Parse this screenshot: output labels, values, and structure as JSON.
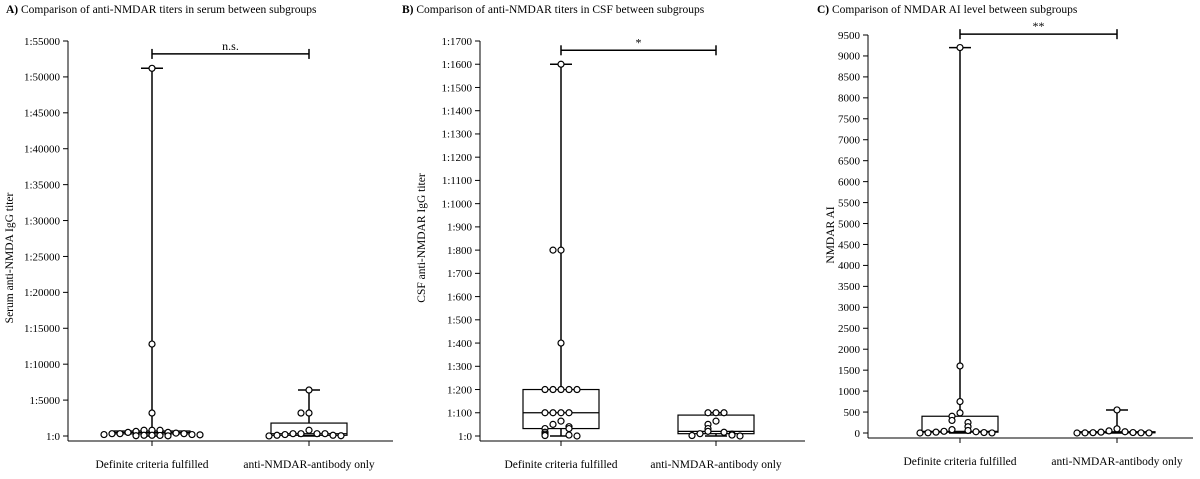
{
  "figure": {
    "colors": {
      "background": "#ffffff",
      "ink": "#000000"
    }
  },
  "chart_data": [
    {
      "type": "boxplot",
      "panel": "A",
      "title": "A) Comparison of anti-NMDAR titers in serum between subgroups",
      "title_prefix": "A)",
      "title_text": "Comparison of anti-NMDAR titers in serum between subgroups",
      "xlabel": "",
      "ylabel": "Serum anti-NMDA IgG titer",
      "ylim": [
        0,
        55000
      ],
      "yticks": [
        0,
        5000,
        10000,
        15000,
        20000,
        25000,
        30000,
        35000,
        40000,
        45000,
        50000,
        55000
      ],
      "ytick_labels": [
        "1:0",
        "1:5000",
        "1:10000",
        "1:15000",
        "1:20000",
        "1:25000",
        "1:30000",
        "1:35000",
        "1:40000",
        "1:45000",
        "1:50000",
        "1:55000"
      ],
      "categories": [
        "Definite criteria fulfilled",
        "anti-NMDAR-antibody only"
      ],
      "groups": [
        {
          "min": 0,
          "q1": 300,
          "median": 500,
          "q3": 700,
          "max": 51200,
          "points": [
            51200,
            12800,
            3200,
            800,
            800,
            800,
            640,
            500,
            500,
            400,
            320,
            320,
            320,
            200,
            200,
            160,
            100,
            100,
            80,
            40,
            20
          ]
        },
        {
          "min": 0,
          "q1": 100,
          "median": 320,
          "q3": 1800,
          "max": 6400,
          "points": [
            6400,
            3200,
            3200,
            800,
            320,
            320,
            320,
            320,
            200,
            100,
            100,
            40,
            10
          ]
        }
      ],
      "significance": {
        "label": "n.s.",
        "y": 53200
      }
    },
    {
      "type": "boxplot",
      "panel": "B",
      "title": "B) Comparison of anti-NMDAR titers in CSF between subgroups",
      "title_prefix": "B)",
      "title_text": "Comparison of anti-NMDAR titers in CSF between subgroups",
      "xlabel": "",
      "ylabel": "CSF anti-NMDAR IgG titer",
      "ylim": [
        0,
        1700
      ],
      "yticks": [
        0,
        100,
        200,
        300,
        400,
        500,
        600,
        700,
        800,
        900,
        1000,
        1100,
        1200,
        1300,
        1400,
        1500,
        1600,
        1700
      ],
      "ytick_labels": [
        "1:0",
        "1:100",
        "1:200",
        "1:300",
        "1:400",
        "1:500",
        "1:600",
        "1:700",
        "1:800",
        "1:900",
        "1:1000",
        "1:1100",
        "1:1200",
        "1:1300",
        "1:1400",
        "1:1500",
        "1:1600",
        "1:1700"
      ],
      "categories": [
        "Definite criteria fulfilled",
        "anti-NMDAR-antibody only"
      ],
      "groups": [
        {
          "min": 0,
          "q1": 32,
          "median": 100,
          "q3": 200,
          "max": 1600,
          "points": [
            1600,
            800,
            800,
            400,
            200,
            200,
            200,
            200,
            200,
            100,
            100,
            100,
            100,
            64,
            50,
            40,
            32,
            32,
            16,
            8,
            4,
            2,
            0
          ]
        },
        {
          "min": 0,
          "q1": 10,
          "median": 20,
          "q3": 90,
          "max": 100,
          "points": [
            100,
            100,
            100,
            64,
            50,
            32,
            20,
            16,
            10,
            8,
            4,
            2,
            0
          ]
        }
      ],
      "significance": {
        "label": "*",
        "y": 1660
      }
    },
    {
      "type": "boxplot",
      "panel": "C",
      "title": "C) Comparison of NMDAR AI level between subgroups",
      "title_prefix": "C)",
      "title_text": "Comparison of NMDAR AI level between subgroups",
      "xlabel": "",
      "ylabel": "NMDAR AI",
      "ylim": [
        0,
        9500
      ],
      "yticks": [
        0,
        500,
        1000,
        1500,
        2000,
        2500,
        3000,
        3500,
        4000,
        4500,
        5000,
        5500,
        6000,
        6500,
        7000,
        7500,
        8000,
        8500,
        9000,
        9500
      ],
      "ytick_labels": [
        "0",
        "500",
        "1000",
        "1500",
        "2000",
        "2500",
        "3000",
        "3500",
        "4000",
        "4500",
        "5000",
        "5500",
        "6000",
        "6500",
        "7000",
        "7500",
        "8000",
        "8500",
        "9000",
        "9500"
      ],
      "categories": [
        "Definite criteria fulfilled",
        "anti-NMDAR-antibody only"
      ],
      "groups": [
        {
          "min": 0,
          "q1": 20,
          "median": 40,
          "q3": 400,
          "max": 9200,
          "points": [
            9200,
            1600,
            750,
            480,
            400,
            300,
            250,
            150,
            80,
            60,
            40,
            30,
            20,
            10,
            5,
            2,
            0
          ]
        },
        {
          "min": 0,
          "q1": 5,
          "median": 10,
          "q3": 30,
          "max": 550,
          "points": [
            550,
            100,
            50,
            30,
            20,
            10,
            8,
            5,
            3,
            2,
            0
          ]
        }
      ],
      "significance": {
        "label": "**",
        "y": 9520
      }
    }
  ]
}
